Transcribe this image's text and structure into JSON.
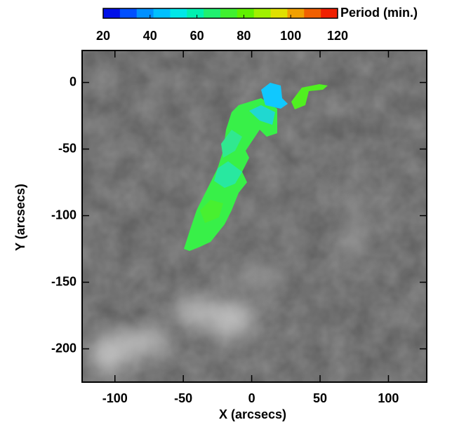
{
  "chart_data": {
    "type": "image",
    "xlabel": "X (arcsecs)",
    "ylabel": "Y (arcsecs)",
    "xlim": [
      -124,
      128
    ],
    "ylim": [
      -225,
      24
    ],
    "xticks": [
      -100,
      -50,
      0,
      50,
      100
    ],
    "yticks": [
      0,
      -50,
      -100,
      -150,
      -200
    ],
    "colorbar": {
      "label": "Period (min.)",
      "lim": [
        20,
        120
      ],
      "ticks": [
        20,
        40,
        60,
        80,
        100,
        120
      ],
      "colors": [
        "#0010e8",
        "#0050ff",
        "#0090ff",
        "#00c0ff",
        "#00e8e8",
        "#00f0b0",
        "#20f070",
        "#40f030",
        "#60f000",
        "#a0f000",
        "#e0e000",
        "#f0a000",
        "#f06000",
        "#f02000"
      ]
    }
  }
}
